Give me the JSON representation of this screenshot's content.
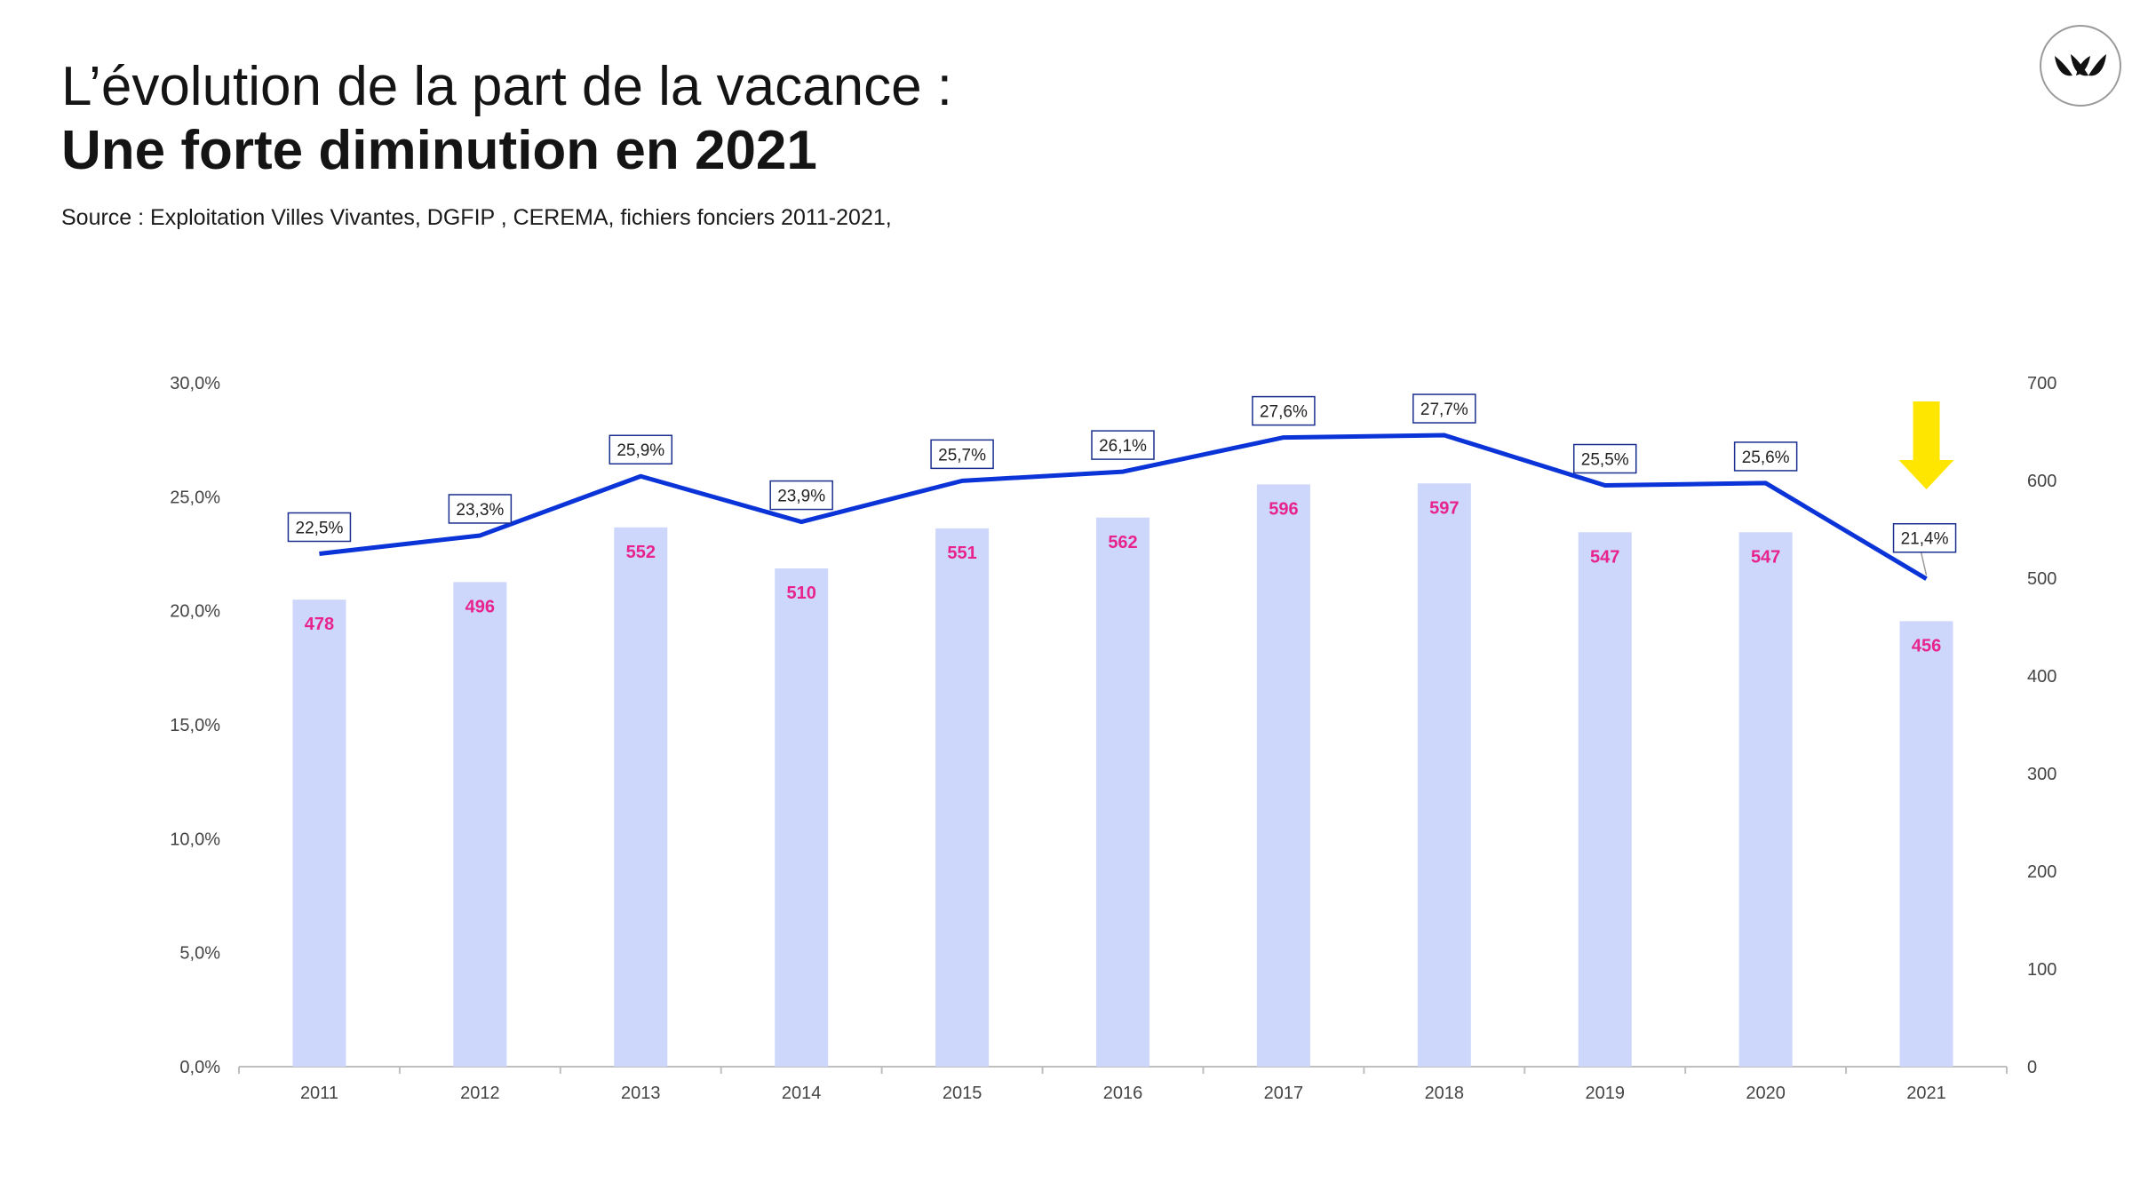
{
  "header": {
    "title_line1": "L’évolution de la part de la vacance :",
    "title_line2": "Une forte diminution en 2021",
    "source": "Source : Exploitation Villes Vivantes, DGFIP , CEREMA, fichiers fonciers 2011-2021,"
  },
  "logo": {
    "icon": "leaf-logo-icon"
  },
  "colors": {
    "bar": "#cdd6fb",
    "line": "#0a33d8",
    "bar_label": "#e8238e",
    "label_box_border": "#1a2f8f",
    "arrow": "#ffe600",
    "axis": "#bfbfbf"
  },
  "chart_data": {
    "type": "bar+line",
    "categories": [
      "2011",
      "2012",
      "2013",
      "2014",
      "2015",
      "2016",
      "2017",
      "2018",
      "2019",
      "2020",
      "2021"
    ],
    "series": [
      {
        "type": "bar",
        "axis": "right",
        "values": [
          478,
          496,
          552,
          510,
          551,
          562,
          596,
          597,
          547,
          547,
          456
        ],
        "labels": [
          "478",
          "496",
          "552",
          "510",
          "551",
          "562",
          "596",
          "597",
          "547",
          "547",
          "456"
        ]
      },
      {
        "type": "line",
        "axis": "left",
        "values": [
          22.5,
          23.3,
          25.9,
          23.9,
          25.7,
          26.1,
          27.6,
          27.7,
          25.5,
          25.6,
          21.4
        ],
        "labels": [
          "22,5%",
          "23,3%",
          "25,9%",
          "23,9%",
          "25,7%",
          "26,1%",
          "27,6%",
          "27,7%",
          "25,5%",
          "25,6%",
          "21,4%"
        ]
      }
    ],
    "y_left": {
      "range": [
        0,
        30
      ],
      "ticks": [
        "0,0%",
        "5,0%",
        "10,0%",
        "15,0%",
        "20,0%",
        "25,0%",
        "30,0%"
      ]
    },
    "y_right": {
      "range": [
        0,
        700
      ],
      "ticks": [
        "0",
        "100",
        "200",
        "300",
        "400",
        "500",
        "600",
        "700"
      ]
    },
    "grid": false,
    "legend": "none",
    "annotation": {
      "type": "arrow-down",
      "category": "2021",
      "color": "#ffe600"
    }
  }
}
